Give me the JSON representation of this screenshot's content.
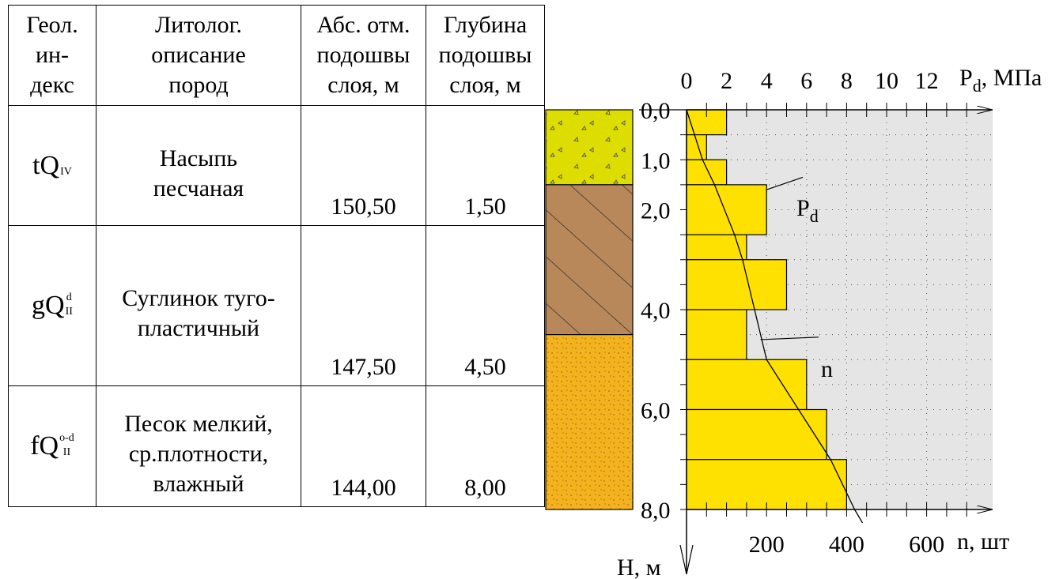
{
  "table": {
    "headers": [
      "Геол.\nин-\nдекс",
      "Литолог.\nописание\nпород",
      "Абс. отм.\nподошвы\nслоя, м",
      "Глубина\nподошвы\nслоя, м"
    ],
    "rows": [
      {
        "index_base": "tQ",
        "index_sup": "",
        "index_sub": "IV",
        "lithology": "Насыпь\nпесчаная",
        "abs_mark": "150,50",
        "depth": "1,50",
        "fill_color": "#dedd00"
      },
      {
        "index_base": "gQ",
        "index_sup": "d",
        "index_sub": "II",
        "lithology": "Суглинок туго-\nпластичный",
        "abs_mark": "147,50",
        "depth": "4,50",
        "fill_color": "#b8885a"
      },
      {
        "index_base": "fQ",
        "index_sup": "o-d",
        "index_sub": "II",
        "lithology": "Песок мелкий,\nср.плотности,\nвлажный",
        "abs_mark": "144,00",
        "depth": "8,00",
        "fill_color": "#f4b21e"
      }
    ]
  },
  "chart_data": {
    "type": "bar",
    "orientation": "horizontal-steps",
    "background_color": "#e5e5e5",
    "bar_color": "#ffe100",
    "top_axis": {
      "label_main": "P",
      "label_sub": "d",
      "label_rest": ", МПа",
      "ticks": [
        "0",
        "2",
        "4",
        "6",
        "8",
        "10",
        "12"
      ],
      "range": [
        0,
        15
      ]
    },
    "bottom_axis": {
      "label": "n, шт",
      "ticks": [
        "200",
        "400",
        "600"
      ],
      "range": [
        0,
        750
      ]
    },
    "depth_axis": {
      "label": "Н, м",
      "ticks": [
        "0,0",
        "1,0",
        "2,0",
        "4,0",
        "6,0",
        "8,0"
      ],
      "range": [
        0,
        8
      ]
    },
    "pd_series": {
      "name_main": "P",
      "name_sub": "d",
      "intervals": [
        [
          0.0,
          0.5
        ],
        [
          0.5,
          1.0
        ],
        [
          1.0,
          1.5
        ],
        [
          1.5,
          2.5
        ],
        [
          2.5,
          3.0
        ],
        [
          3.0,
          4.0
        ],
        [
          4.0,
          5.0
        ],
        [
          5.0,
          6.0
        ],
        [
          6.0,
          7.0
        ],
        [
          7.0,
          8.0
        ]
      ],
      "values": [
        2.0,
        1.0,
        2.0,
        4.0,
        3.0,
        5.0,
        3.0,
        6.0,
        7.0,
        8.0
      ]
    },
    "n_series": {
      "name": "n",
      "depth": [
        0.0,
        1.0,
        1.5,
        2.5,
        3.0,
        4.0,
        5.0,
        6.0,
        7.0,
        8.0
      ],
      "values": [
        0,
        40,
        70,
        120,
        140,
        170,
        200,
        280,
        360,
        420
      ]
    }
  }
}
